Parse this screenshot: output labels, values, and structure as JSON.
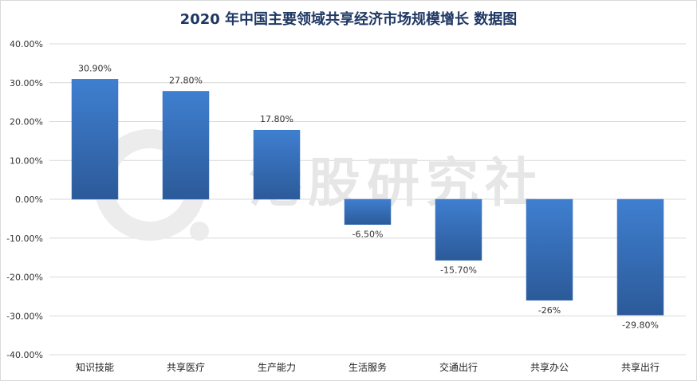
{
  "chart_data": {
    "type": "bar",
    "title": "2020 年中国主要领域共享经济市场规模增长 数据图",
    "categories": [
      "知识技能",
      "共享医疗",
      "生产能力",
      "生活服务",
      "交通出行",
      "共享办公",
      "共享出行"
    ],
    "values": [
      30.9,
      27.8,
      17.8,
      -6.5,
      -15.7,
      -26.0,
      -29.8
    ],
    "data_labels": [
      "30.90%",
      "27.80%",
      "17.80%",
      "-6.50%",
      "-15.70%",
      "-26%",
      "-29.80%"
    ],
    "ylim": [
      -40,
      40
    ],
    "yticks": [
      40,
      30,
      20,
      10,
      0,
      -10,
      -20,
      -30,
      -40
    ],
    "ytick_labels": [
      "40.00%",
      "30.00%",
      "20.00%",
      "10.00%",
      "0.00%",
      "-10.00%",
      "-20.00%",
      "-30.00%",
      "-40.00%"
    ],
    "grid": true,
    "bar_color": "#3a73c0",
    "watermark": "港股研究社"
  }
}
